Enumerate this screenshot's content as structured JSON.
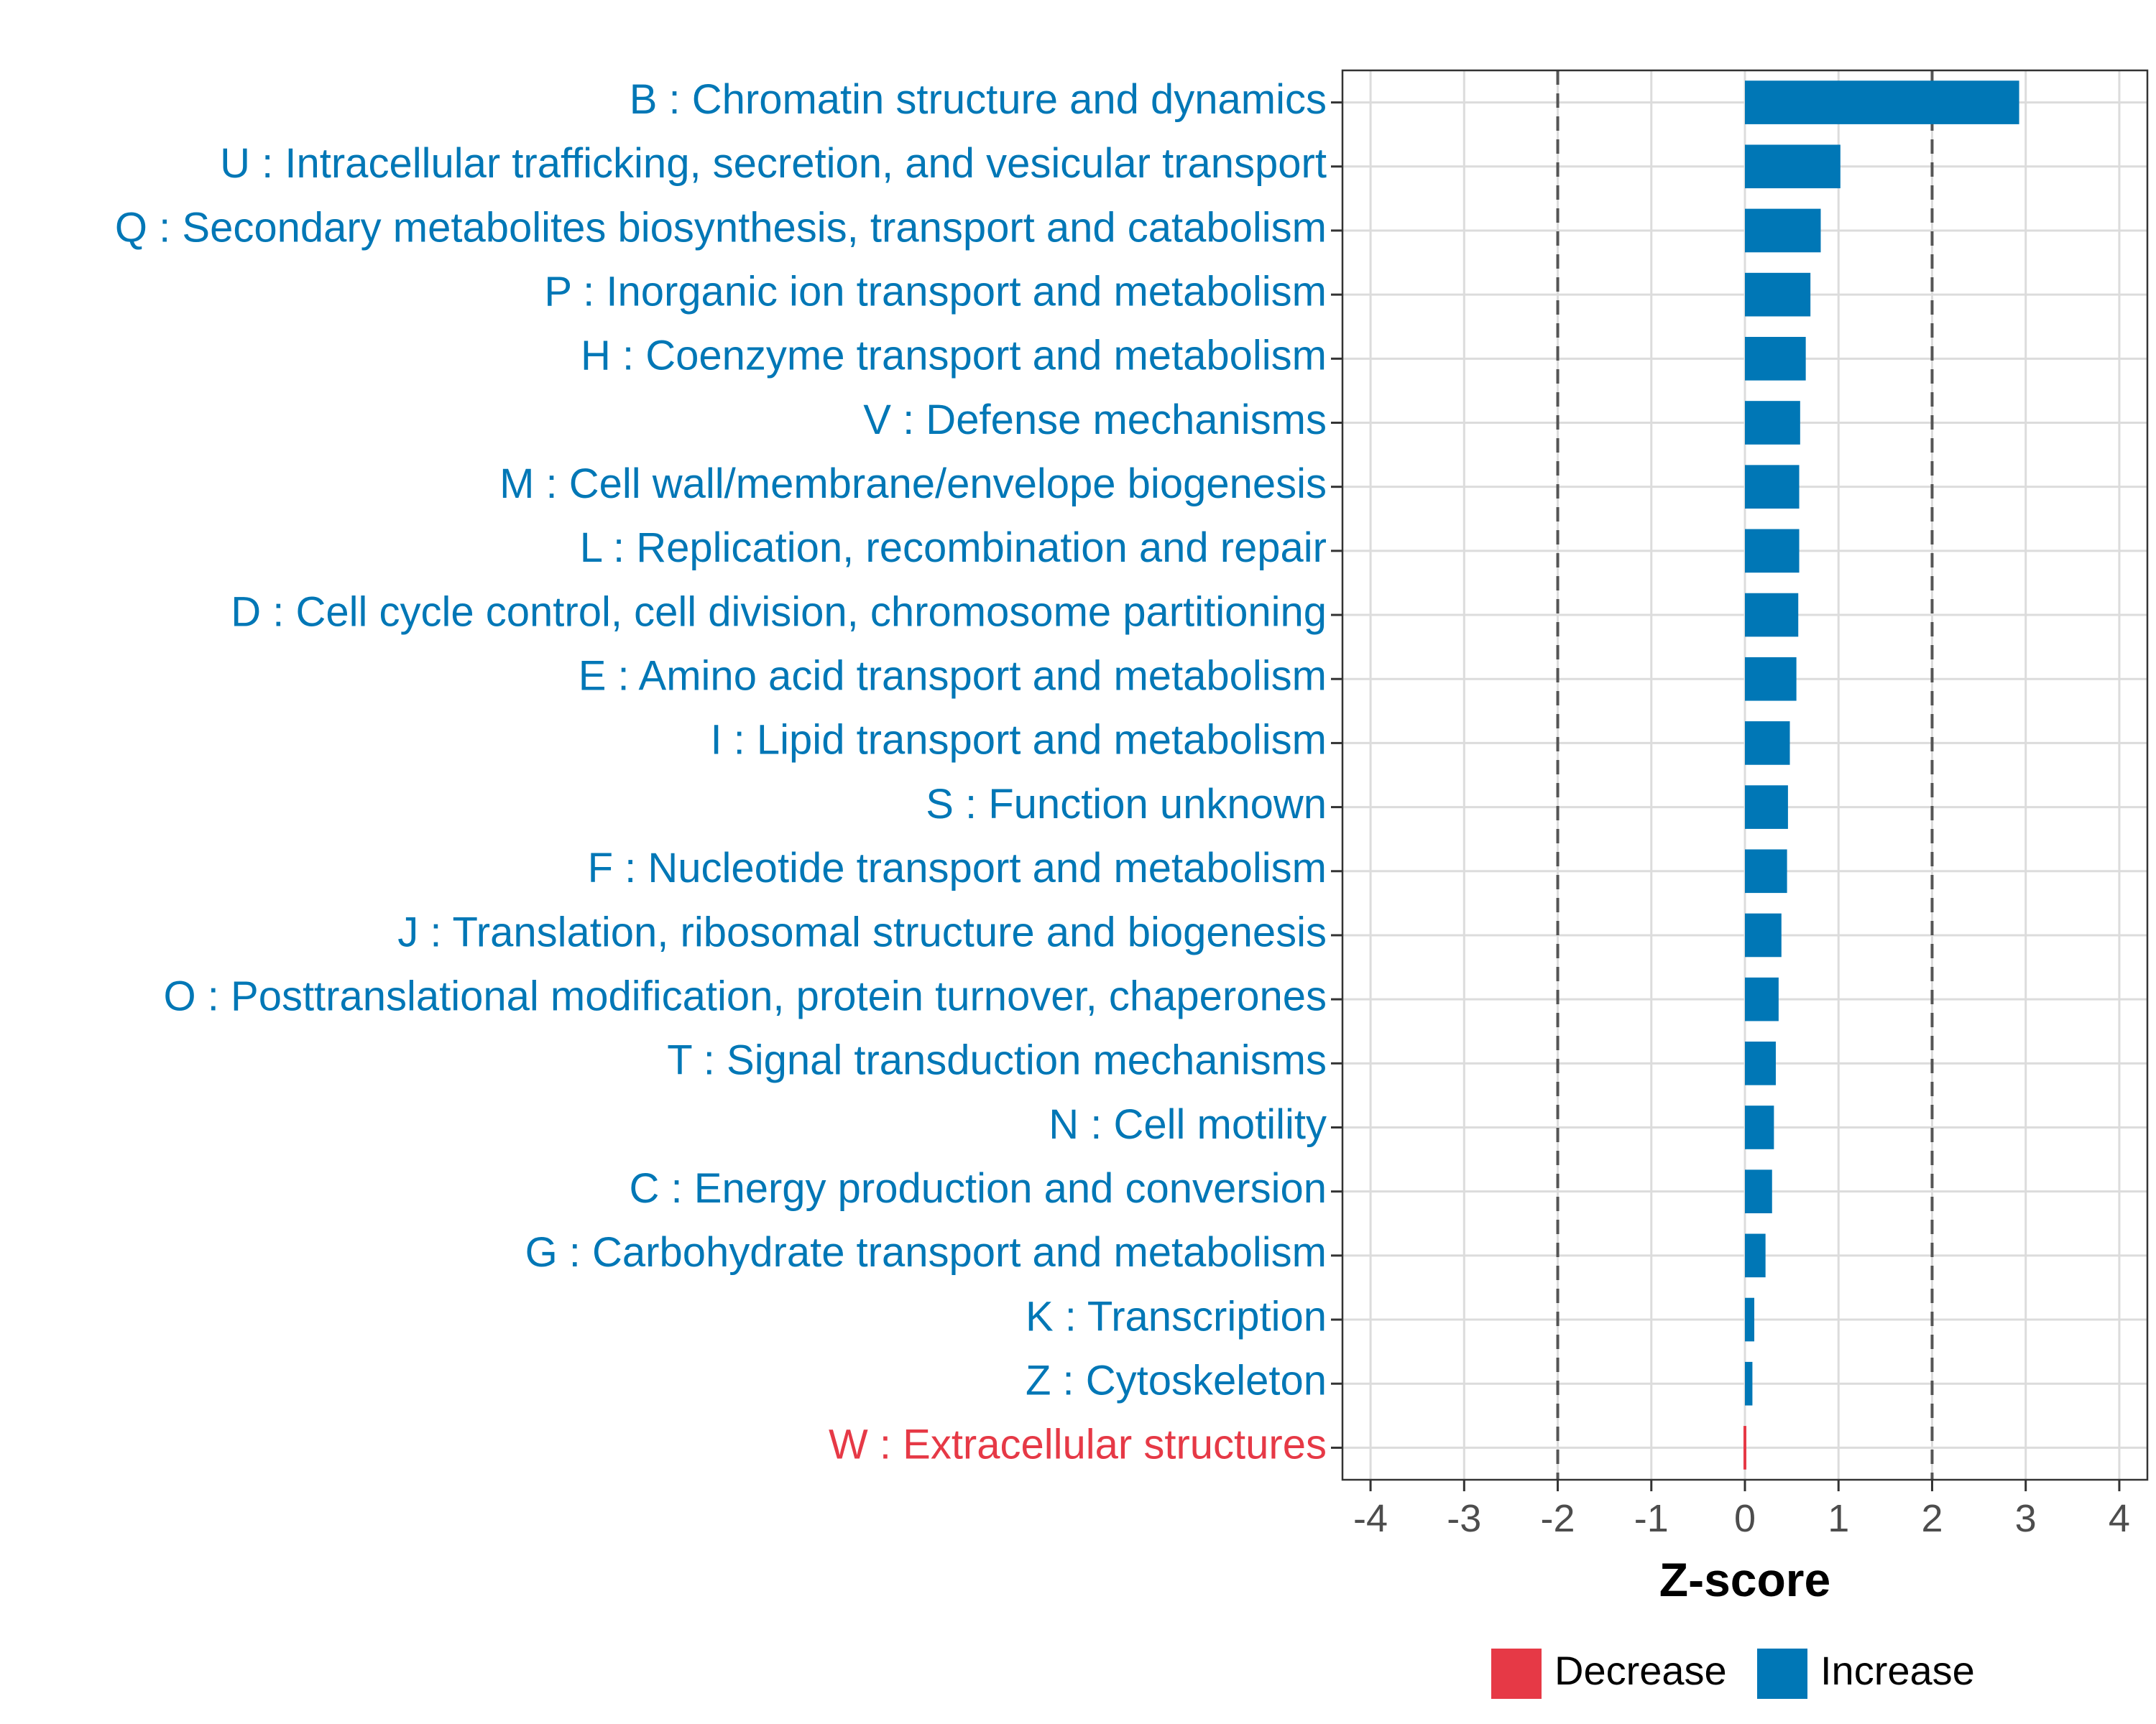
{
  "chart_data": {
    "type": "bar",
    "orientation": "horizontal",
    "title": "",
    "xlabel": "Z-score",
    "ylabel": "",
    "xlim": [
      -4.3,
      4.3
    ],
    "xticks": [
      -4,
      -3,
      -2,
      -1,
      0,
      1,
      2,
      3,
      4
    ],
    "xtick_labels": [
      "-4",
      "-3",
      "-2",
      "-1",
      "0",
      "1",
      "2",
      "3",
      "4"
    ],
    "reference_lines": [
      -2,
      2
    ],
    "grid": true,
    "legend_position": "bottom",
    "colors": {
      "Decrease": "#E63946",
      "Increase": "#0077B6"
    },
    "legend": [
      {
        "name": "Decrease",
        "color": "#E63946"
      },
      {
        "name": "Increase",
        "color": "#0077B6"
      }
    ],
    "bars": [
      {
        "label": "B : Chromatin structure and dynamics",
        "value": 2.93,
        "group": "Increase"
      },
      {
        "label": "U : Intracellular trafficking, secretion, and vesicular transport",
        "value": 1.02,
        "group": "Increase"
      },
      {
        "label": "Q : Secondary metabolites biosynthesis, transport and catabolism",
        "value": 0.81,
        "group": "Increase"
      },
      {
        "label": "P : Inorganic ion transport and metabolism",
        "value": 0.7,
        "group": "Increase"
      },
      {
        "label": "H : Coenzyme transport and metabolism",
        "value": 0.65,
        "group": "Increase"
      },
      {
        "label": "V : Defense mechanisms",
        "value": 0.59,
        "group": "Increase"
      },
      {
        "label": "M : Cell wall/membrane/envelope biogenesis",
        "value": 0.58,
        "group": "Increase"
      },
      {
        "label": "L : Replication, recombination and repair",
        "value": 0.58,
        "group": "Increase"
      },
      {
        "label": "D : Cell cycle control, cell division, chromosome partitioning",
        "value": 0.57,
        "group": "Increase"
      },
      {
        "label": "E : Amino acid transport and metabolism",
        "value": 0.55,
        "group": "Increase"
      },
      {
        "label": "I : Lipid transport and metabolism",
        "value": 0.48,
        "group": "Increase"
      },
      {
        "label": "S : Function unknown",
        "value": 0.46,
        "group": "Increase"
      },
      {
        "label": "F : Nucleotide transport and metabolism",
        "value": 0.45,
        "group": "Increase"
      },
      {
        "label": "J : Translation, ribosomal structure and biogenesis",
        "value": 0.39,
        "group": "Increase"
      },
      {
        "label": "O : Posttranslational modification, protein turnover, chaperones",
        "value": 0.36,
        "group": "Increase"
      },
      {
        "label": "T : Signal transduction mechanisms",
        "value": 0.33,
        "group": "Increase"
      },
      {
        "label": "N : Cell motility",
        "value": 0.31,
        "group": "Increase"
      },
      {
        "label": "C : Energy production and conversion",
        "value": 0.29,
        "group": "Increase"
      },
      {
        "label": "G : Carbohydrate transport and metabolism",
        "value": 0.22,
        "group": "Increase"
      },
      {
        "label": "K : Transcription",
        "value": 0.1,
        "group": "Increase"
      },
      {
        "label": "Z : Cytoskeleton",
        "value": 0.08,
        "group": "Increase"
      },
      {
        "label": "W : Extracellular structures",
        "value": -0.02,
        "group": "Decrease"
      }
    ]
  }
}
